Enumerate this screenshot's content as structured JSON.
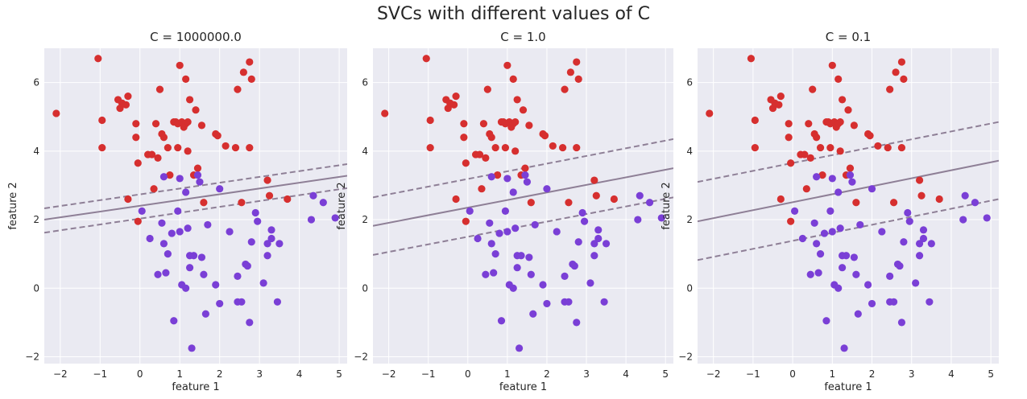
{
  "suptitle": "SVCs with different values of C",
  "colors": {
    "class_0": "#d62f2f",
    "class_1": "#7a3fd6",
    "decision_line": "#8e7f96",
    "background": "#eaeaf2",
    "grid": "#ffffff"
  },
  "points": [
    {
      "x": -2.1,
      "y": 5.1,
      "c": 0
    },
    {
      "x": -1.05,
      "y": 6.7,
      "c": 0
    },
    {
      "x": -0.95,
      "y": 4.9,
      "c": 0
    },
    {
      "x": -0.95,
      "y": 4.1,
      "c": 0
    },
    {
      "x": -0.55,
      "y": 5.5,
      "c": 0
    },
    {
      "x": -0.5,
      "y": 5.25,
      "c": 0
    },
    {
      "x": -0.45,
      "y": 5.4,
      "c": 0
    },
    {
      "x": -0.35,
      "y": 5.35,
      "c": 0
    },
    {
      "x": -0.3,
      "y": 5.6,
      "c": 0
    },
    {
      "x": -0.3,
      "y": 2.6,
      "c": 0
    },
    {
      "x": -0.1,
      "y": 4.8,
      "c": 0
    },
    {
      "x": -0.1,
      "y": 4.4,
      "c": 0
    },
    {
      "x": -0.05,
      "y": 1.95,
      "c": 0
    },
    {
      "x": -0.05,
      "y": 3.65,
      "c": 0
    },
    {
      "x": 0.2,
      "y": 3.9,
      "c": 0
    },
    {
      "x": 0.3,
      "y": 3.9,
      "c": 0
    },
    {
      "x": 0.35,
      "y": 2.9,
      "c": 0
    },
    {
      "x": 0.4,
      "y": 4.8,
      "c": 0
    },
    {
      "x": 0.45,
      "y": 3.8,
      "c": 0
    },
    {
      "x": 0.5,
      "y": 5.8,
      "c": 0
    },
    {
      "x": 0.55,
      "y": 4.5,
      "c": 0
    },
    {
      "x": 0.6,
      "y": 4.4,
      "c": 0
    },
    {
      "x": 0.7,
      "y": 4.1,
      "c": 0
    },
    {
      "x": 0.75,
      "y": 3.3,
      "c": 0
    },
    {
      "x": 0.85,
      "y": 4.85,
      "c": 0
    },
    {
      "x": 0.9,
      "y": 4.85,
      "c": 0
    },
    {
      "x": 0.95,
      "y": 4.8,
      "c": 0
    },
    {
      "x": 0.95,
      "y": 4.1,
      "c": 0
    },
    {
      "x": 1.0,
      "y": 6.5,
      "c": 0
    },
    {
      "x": 1.05,
      "y": 4.85,
      "c": 0
    },
    {
      "x": 1.1,
      "y": 4.7,
      "c": 0
    },
    {
      "x": 1.15,
      "y": 4.8,
      "c": 0
    },
    {
      "x": 1.15,
      "y": 6.1,
      "c": 0
    },
    {
      "x": 1.2,
      "y": 4.85,
      "c": 0
    },
    {
      "x": 1.2,
      "y": 4.0,
      "c": 0
    },
    {
      "x": 1.25,
      "y": 5.5,
      "c": 0
    },
    {
      "x": 1.35,
      "y": 3.3,
      "c": 0
    },
    {
      "x": 1.4,
      "y": 5.2,
      "c": 0
    },
    {
      "x": 1.45,
      "y": 3.5,
      "c": 0
    },
    {
      "x": 1.55,
      "y": 4.75,
      "c": 0
    },
    {
      "x": 1.6,
      "y": 2.5,
      "c": 0
    },
    {
      "x": 1.9,
      "y": 4.5,
      "c": 0
    },
    {
      "x": 1.95,
      "y": 4.45,
      "c": 0
    },
    {
      "x": 2.15,
      "y": 4.15,
      "c": 0
    },
    {
      "x": 2.4,
      "y": 4.1,
      "c": 0
    },
    {
      "x": 2.45,
      "y": 5.8,
      "c": 0
    },
    {
      "x": 2.55,
      "y": 2.5,
      "c": 0
    },
    {
      "x": 2.6,
      "y": 6.3,
      "c": 0
    },
    {
      "x": 2.75,
      "y": 6.6,
      "c": 0
    },
    {
      "x": 2.75,
      "y": 4.1,
      "c": 0
    },
    {
      "x": 2.8,
      "y": 6.1,
      "c": 0
    },
    {
      "x": 3.2,
      "y": 3.15,
      "c": 0
    },
    {
      "x": 3.25,
      "y": 2.7,
      "c": 0
    },
    {
      "x": 3.7,
      "y": 2.6,
      "c": 0
    },
    {
      "x": 0.05,
      "y": 2.25,
      "c": 1
    },
    {
      "x": 0.25,
      "y": 1.45,
      "c": 1
    },
    {
      "x": 0.45,
      "y": 0.4,
      "c": 1
    },
    {
      "x": 0.55,
      "y": 1.9,
      "c": 1
    },
    {
      "x": 0.6,
      "y": 1.3,
      "c": 1
    },
    {
      "x": 0.6,
      "y": 3.25,
      "c": 1
    },
    {
      "x": 0.65,
      "y": 0.45,
      "c": 1
    },
    {
      "x": 0.7,
      "y": 1.0,
      "c": 1
    },
    {
      "x": 0.8,
      "y": 1.6,
      "c": 1
    },
    {
      "x": 0.85,
      "y": -0.95,
      "c": 1
    },
    {
      "x": 0.95,
      "y": 2.25,
      "c": 1
    },
    {
      "x": 1.0,
      "y": 1.65,
      "c": 1
    },
    {
      "x": 1.0,
      "y": 3.2,
      "c": 1
    },
    {
      "x": 1.05,
      "y": 0.1,
      "c": 1
    },
    {
      "x": 1.15,
      "y": 2.8,
      "c": 1
    },
    {
      "x": 1.15,
      "y": 0.0,
      "c": 1
    },
    {
      "x": 1.2,
      "y": 1.75,
      "c": 1
    },
    {
      "x": 1.25,
      "y": 0.6,
      "c": 1
    },
    {
      "x": 1.25,
      "y": 0.95,
      "c": 1
    },
    {
      "x": 1.3,
      "y": -1.75,
      "c": 1
    },
    {
      "x": 1.35,
      "y": 0.95,
      "c": 1
    },
    {
      "x": 1.45,
      "y": 3.3,
      "c": 1
    },
    {
      "x": 1.5,
      "y": 3.1,
      "c": 1
    },
    {
      "x": 1.55,
      "y": 0.9,
      "c": 1
    },
    {
      "x": 1.6,
      "y": 0.4,
      "c": 1
    },
    {
      "x": 1.65,
      "y": -0.75,
      "c": 1
    },
    {
      "x": 1.7,
      "y": 1.85,
      "c": 1
    },
    {
      "x": 1.9,
      "y": 0.1,
      "c": 1
    },
    {
      "x": 2.0,
      "y": 2.9,
      "c": 1
    },
    {
      "x": 2.0,
      "y": -0.45,
      "c": 1
    },
    {
      "x": 2.25,
      "y": 1.65,
      "c": 1
    },
    {
      "x": 2.45,
      "y": 0.35,
      "c": 1
    },
    {
      "x": 2.45,
      "y": -0.4,
      "c": 1
    },
    {
      "x": 2.55,
      "y": -0.4,
      "c": 1
    },
    {
      "x": 2.65,
      "y": 0.7,
      "c": 1
    },
    {
      "x": 2.7,
      "y": 0.65,
      "c": 1
    },
    {
      "x": 2.75,
      "y": -1.0,
      "c": 1
    },
    {
      "x": 2.8,
      "y": 1.35,
      "c": 1
    },
    {
      "x": 2.9,
      "y": 2.2,
      "c": 1
    },
    {
      "x": 2.95,
      "y": 1.95,
      "c": 1
    },
    {
      "x": 3.1,
      "y": 0.15,
      "c": 1
    },
    {
      "x": 3.2,
      "y": 1.3,
      "c": 1
    },
    {
      "x": 3.2,
      "y": 0.95,
      "c": 1
    },
    {
      "x": 3.3,
      "y": 1.7,
      "c": 1
    },
    {
      "x": 3.3,
      "y": 1.45,
      "c": 1
    },
    {
      "x": 3.45,
      "y": -0.4,
      "c": 1
    },
    {
      "x": 3.5,
      "y": 1.3,
      "c": 1
    },
    {
      "x": 4.3,
      "y": 2.0,
      "c": 1
    },
    {
      "x": 4.35,
      "y": 2.7,
      "c": 1
    },
    {
      "x": 4.6,
      "y": 2.5,
      "c": 1
    },
    {
      "x": 4.9,
      "y": 2.05,
      "c": 1
    }
  ],
  "chart_data": [
    {
      "type": "scatter",
      "title": "C = 1000000.0",
      "xlabel": "feature 1",
      "ylabel": "feature 2",
      "xlim": [
        -2.4,
        5.2
      ],
      "ylim": [
        -2.2,
        7.0
      ],
      "xticks": [
        -2,
        -1,
        0,
        1,
        2,
        3,
        4,
        5
      ],
      "yticks": [
        -2,
        0,
        2,
        4,
        6
      ],
      "grid": true,
      "decision_boundary": {
        "y_at_xmin": 2.0,
        "y_at_xmax": 3.28
      },
      "margin_upper": {
        "y_at_xmin": 2.33,
        "y_at_xmax": 3.62
      },
      "margin_lower": {
        "y_at_xmin": 1.62,
        "y_at_xmax": 2.92
      }
    },
    {
      "type": "scatter",
      "title": "C = 1.0",
      "xlabel": "feature 1",
      "ylabel": "feature 2",
      "xlim": [
        -2.4,
        5.2
      ],
      "ylim": [
        -2.2,
        7.0
      ],
      "xticks": [
        -2,
        -1,
        0,
        1,
        2,
        3,
        4,
        5
      ],
      "yticks": [
        -2,
        0,
        2,
        4,
        6
      ],
      "grid": true,
      "decision_boundary": {
        "y_at_xmin": 1.82,
        "y_at_xmax": 3.5
      },
      "margin_upper": {
        "y_at_xmin": 2.65,
        "y_at_xmax": 4.35
      },
      "margin_lower": {
        "y_at_xmin": 0.97,
        "y_at_xmax": 2.65
      }
    },
    {
      "type": "scatter",
      "title": "C = 0.1",
      "xlabel": "feature 1",
      "ylabel": "feature 2",
      "xlim": [
        -2.4,
        5.2
      ],
      "ylim": [
        -2.2,
        7.0
      ],
      "xticks": [
        -2,
        -1,
        0,
        1,
        2,
        3,
        4,
        5
      ],
      "yticks": [
        -2,
        0,
        2,
        4,
        6
      ],
      "grid": true,
      "decision_boundary": {
        "y_at_xmin": 1.95,
        "y_at_xmax": 3.72
      },
      "margin_upper": {
        "y_at_xmin": 3.1,
        "y_at_xmax": 4.85
      },
      "margin_lower": {
        "y_at_xmin": 0.82,
        "y_at_xmax": 2.6
      }
    }
  ]
}
